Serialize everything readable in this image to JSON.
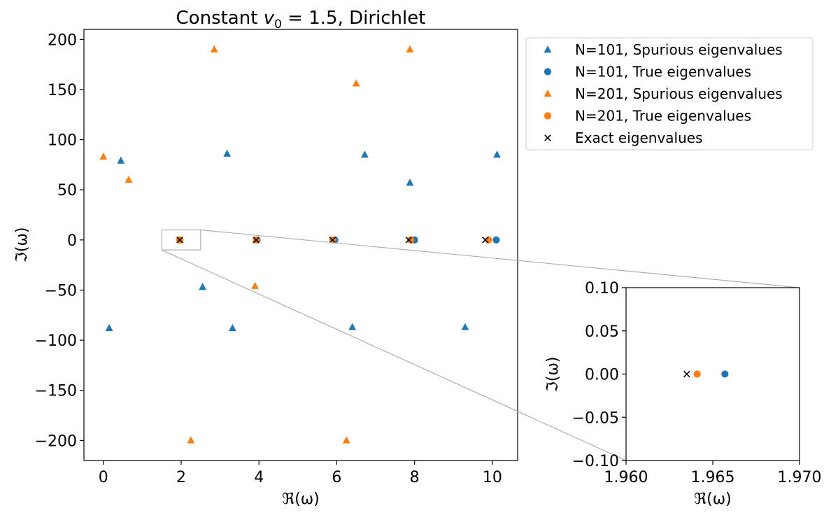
{
  "chart_data": [
    {
      "type": "scatter",
      "title": "Constant v₀ = 1.5, Dirichlet",
      "title_parts": {
        "prefix": "Constant ",
        "var": "v",
        "sub": "0",
        "suffix": " = 1.5, Dirichlet"
      },
      "xlabel": "ℜ(ω)",
      "ylabel": "ℑ(ω)",
      "xlim": [
        -0.5,
        10.65
      ],
      "ylim": [
        -220,
        210
      ],
      "xticks": [
        0,
        2,
        4,
        6,
        8,
        10
      ],
      "xtick_labels": [
        "0",
        "2",
        "4",
        "6",
        "8",
        "10"
      ],
      "yticks": [
        200,
        150,
        100,
        50,
        0,
        -50,
        -100,
        -150,
        -200
      ],
      "ytick_labels": [
        "200",
        "150",
        "100",
        "50",
        "0",
        "−50",
        "−100",
        "−150",
        "−200"
      ],
      "legend": [
        {
          "label": "N=101, Spurious eigenvalues",
          "marker": "triangle",
          "color": "#1f77b4"
        },
        {
          "label": "N=101, True eigenvalues",
          "marker": "circle",
          "color": "#1f77b4"
        },
        {
          "label": "N=201, Spurious eigenvalues",
          "marker": "triangle",
          "color": "#ff7f0e"
        },
        {
          "label": "N=201, True eigenvalues",
          "marker": "circle",
          "color": "#ff7f0e"
        },
        {
          "label": "Exact eigenvalues",
          "marker": "x",
          "color": "#000000"
        }
      ],
      "legend_position": "outside-right-top",
      "series": [
        {
          "name": "N=101, Spurious eigenvalues",
          "marker": "triangle",
          "color": "#1f77b4",
          "points": [
            [
              0.45,
              79
            ],
            [
              3.18,
              86
            ],
            [
              6.72,
              85
            ],
            [
              10.12,
              85
            ],
            [
              7.88,
              57
            ],
            [
              2.55,
              -47
            ],
            [
              0.15,
              -88
            ],
            [
              3.32,
              -88
            ],
            [
              6.4,
              -87
            ],
            [
              9.3,
              -87
            ]
          ]
        },
        {
          "name": "N=101, True eigenvalues",
          "marker": "circle",
          "color": "#1f77b4",
          "points": [
            [
              1.966,
              0
            ],
            [
              3.95,
              0
            ],
            [
              5.95,
              0
            ],
            [
              8.0,
              0
            ],
            [
              10.1,
              0
            ]
          ]
        },
        {
          "name": "N=201, Spurious eigenvalues",
          "marker": "triangle",
          "color": "#ff7f0e",
          "points": [
            [
              2.85,
              190
            ],
            [
              7.88,
              190
            ],
            [
              6.5,
              156
            ],
            [
              0.0,
              83
            ],
            [
              0.65,
              60
            ],
            [
              3.9,
              -46
            ],
            [
              2.25,
              -200
            ],
            [
              6.25,
              -200
            ]
          ]
        },
        {
          "name": "N=201, True eigenvalues",
          "marker": "circle",
          "color": "#ff7f0e",
          "points": [
            [
              1.964,
              0
            ],
            [
              3.93,
              0
            ],
            [
              5.9,
              0
            ],
            [
              7.9,
              0
            ],
            [
              9.9,
              0
            ]
          ]
        },
        {
          "name": "Exact eigenvalues",
          "marker": "x",
          "color": "#000000",
          "points": [
            [
              1.9635,
              0
            ],
            [
              3.93,
              0
            ],
            [
              5.89,
              0
            ],
            [
              7.85,
              0
            ],
            [
              9.82,
              0
            ]
          ]
        }
      ],
      "zoom_box": {
        "xlim": [
          1.5,
          2.5
        ],
        "ylim": [
          -10,
          10
        ]
      }
    },
    {
      "type": "scatter",
      "title": "",
      "xlabel": "ℜ(ω)",
      "ylabel": "ℑ(ω)",
      "xlim": [
        1.96,
        1.97
      ],
      "ylim": [
        -0.1,
        0.1
      ],
      "xticks": [
        1.96,
        1.965,
        1.97
      ],
      "xtick_labels": [
        "1.960",
        "1.965",
        "1.970"
      ],
      "yticks": [
        0.1,
        0.05,
        0,
        -0.05,
        -0.1
      ],
      "ytick_labels": [
        "0.10",
        "0.05",
        "0.00",
        "−0.05",
        "−0.10"
      ],
      "series": [
        {
          "name": "N=101, True eigenvalues",
          "marker": "circle",
          "color": "#1f77b4",
          "points": [
            [
              1.9657,
              0
            ]
          ]
        },
        {
          "name": "N=201, True eigenvalues",
          "marker": "circle",
          "color": "#ff7f0e",
          "points": [
            [
              1.9641,
              0
            ]
          ]
        },
        {
          "name": "Exact eigenvalues",
          "marker": "x",
          "color": "#000000",
          "points": [
            [
              1.9635,
              0
            ]
          ]
        }
      ]
    }
  ]
}
